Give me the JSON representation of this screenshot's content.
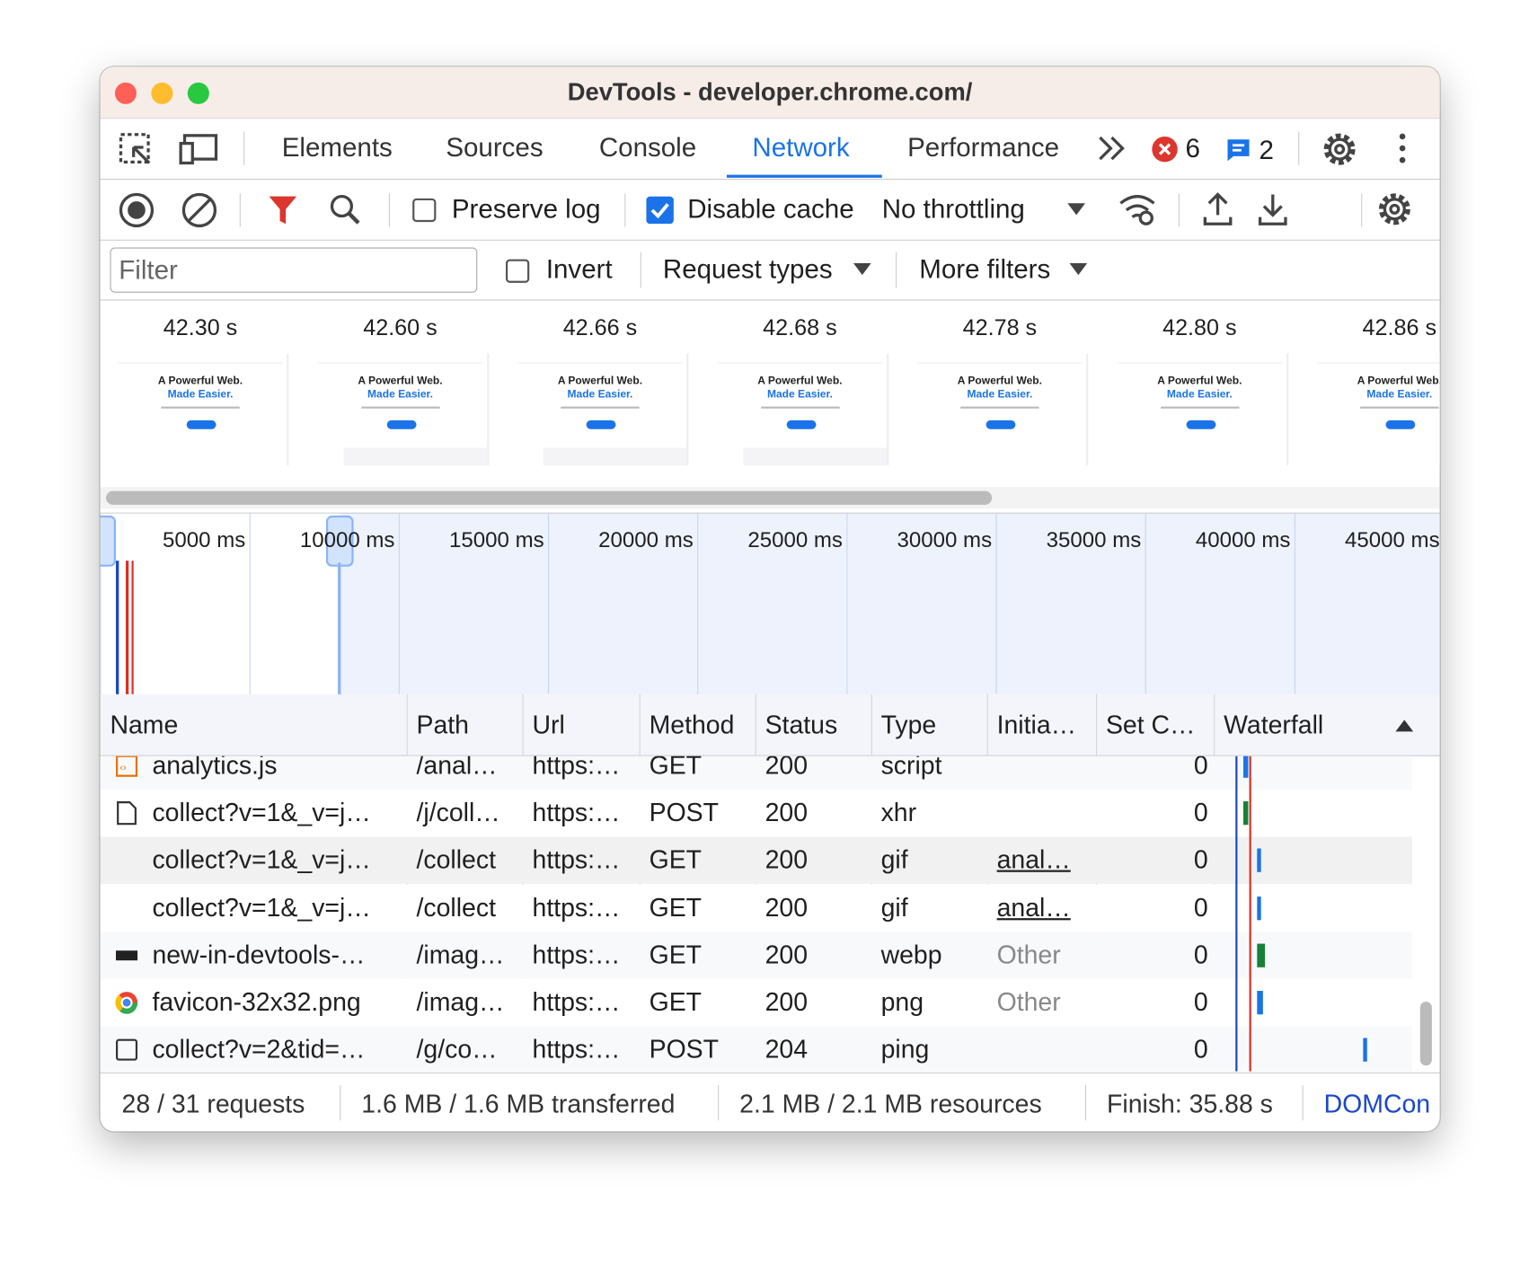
{
  "window": {
    "title": "DevTools - developer.chrome.com/"
  },
  "tabs": [
    "Elements",
    "Sources",
    "Console",
    "Network",
    "Performance"
  ],
  "active_tab": "Network",
  "badges": {
    "errors": "6",
    "messages": "2"
  },
  "toolbar": {
    "preserve_log": "Preserve log",
    "disable_cache": "Disable cache",
    "throttling": "No throttling"
  },
  "filter_bar": {
    "placeholder": "Filter",
    "invert": "Invert",
    "request_types": "Request types",
    "more_filters": "More filters"
  },
  "filmstrip": {
    "times": [
      "42.30 s",
      "42.60 s",
      "42.66 s",
      "42.68 s",
      "42.78 s",
      "42.80 s",
      "42.86 s"
    ],
    "heading": "A Powerful Web.",
    "subheading": "Made Easier."
  },
  "overview": {
    "ticks": [
      "5000 ms",
      "10000 ms",
      "15000 ms",
      "20000 ms",
      "25000 ms",
      "30000 ms",
      "35000 ms",
      "40000 ms",
      "45000 ms"
    ]
  },
  "table": {
    "columns": [
      "Name",
      "Path",
      "Url",
      "Method",
      "Status",
      "Type",
      "Initia…",
      "Set C…",
      "Waterfall"
    ],
    "rows": [
      [
        "analytics.js",
        "/anal…",
        "https:…",
        "GET",
        "200",
        "script",
        "",
        "0"
      ],
      [
        "collect?v=1&_v=j…",
        "/j/coll…",
        "https:…",
        "POST",
        "200",
        "xhr",
        "",
        "0"
      ],
      [
        "collect?v=1&_v=j…",
        "/collect",
        "https:…",
        "GET",
        "200",
        "gif",
        "anal…",
        "0"
      ],
      [
        "collect?v=1&_v=j…",
        "/collect",
        "https:…",
        "GET",
        "200",
        "gif",
        "anal…",
        "0"
      ],
      [
        "new-in-devtools-…",
        "/imag…",
        "https:…",
        "GET",
        "200",
        "webp",
        "Other",
        "0"
      ],
      [
        "favicon-32x32.png",
        "/imag…",
        "https:…",
        "GET",
        "200",
        "png",
        "Other",
        "0"
      ],
      [
        "collect?v=2&tid=…",
        "/g/co…",
        "https:…",
        "POST",
        "204",
        "ping",
        "",
        "0"
      ]
    ]
  },
  "status_bar": [
    "28 / 31 requests",
    "1.6 MB / 1.6 MB transferred",
    "2.1 MB / 2.1 MB resources",
    "Finish: 35.88 s",
    "DOMCon"
  ]
}
